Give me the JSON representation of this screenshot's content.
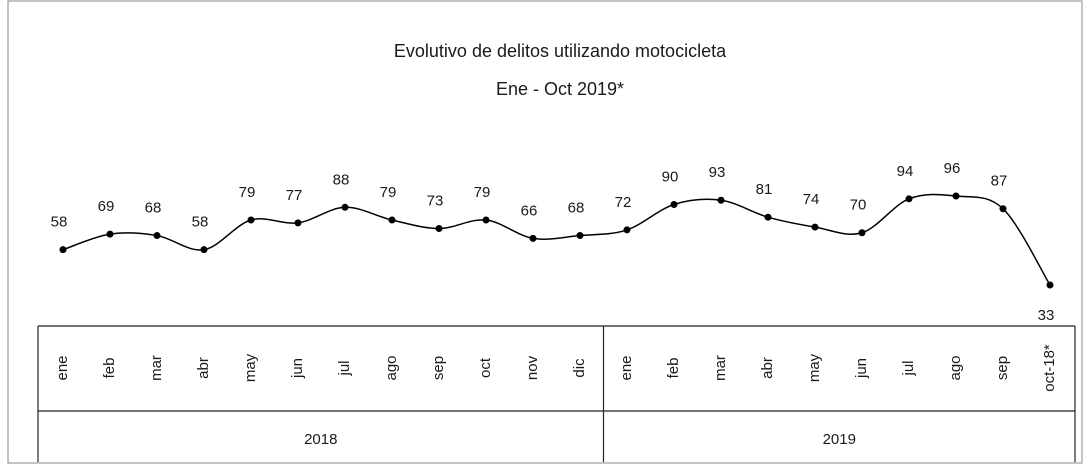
{
  "chart_data": {
    "type": "line",
    "title": "Evolutivo de delitos utilizando motocicleta",
    "subtitle": "Ene - Oct 2019*",
    "categories": [
      "ene",
      "feb",
      "mar",
      "abr",
      "may",
      "jun",
      "jul",
      "ago",
      "sep",
      "oct",
      "nov",
      "dic",
      "ene",
      "feb",
      "mar",
      "abr",
      "may",
      "jun",
      "jul",
      "ago",
      "sep",
      "oct-18*"
    ],
    "values": [
      58,
      69,
      68,
      58,
      79,
      77,
      88,
      79,
      73,
      79,
      66,
      68,
      72,
      90,
      93,
      81,
      74,
      70,
      94,
      96,
      87,
      33
    ],
    "groups": [
      "2018",
      "2019"
    ],
    "color": "#000000"
  }
}
